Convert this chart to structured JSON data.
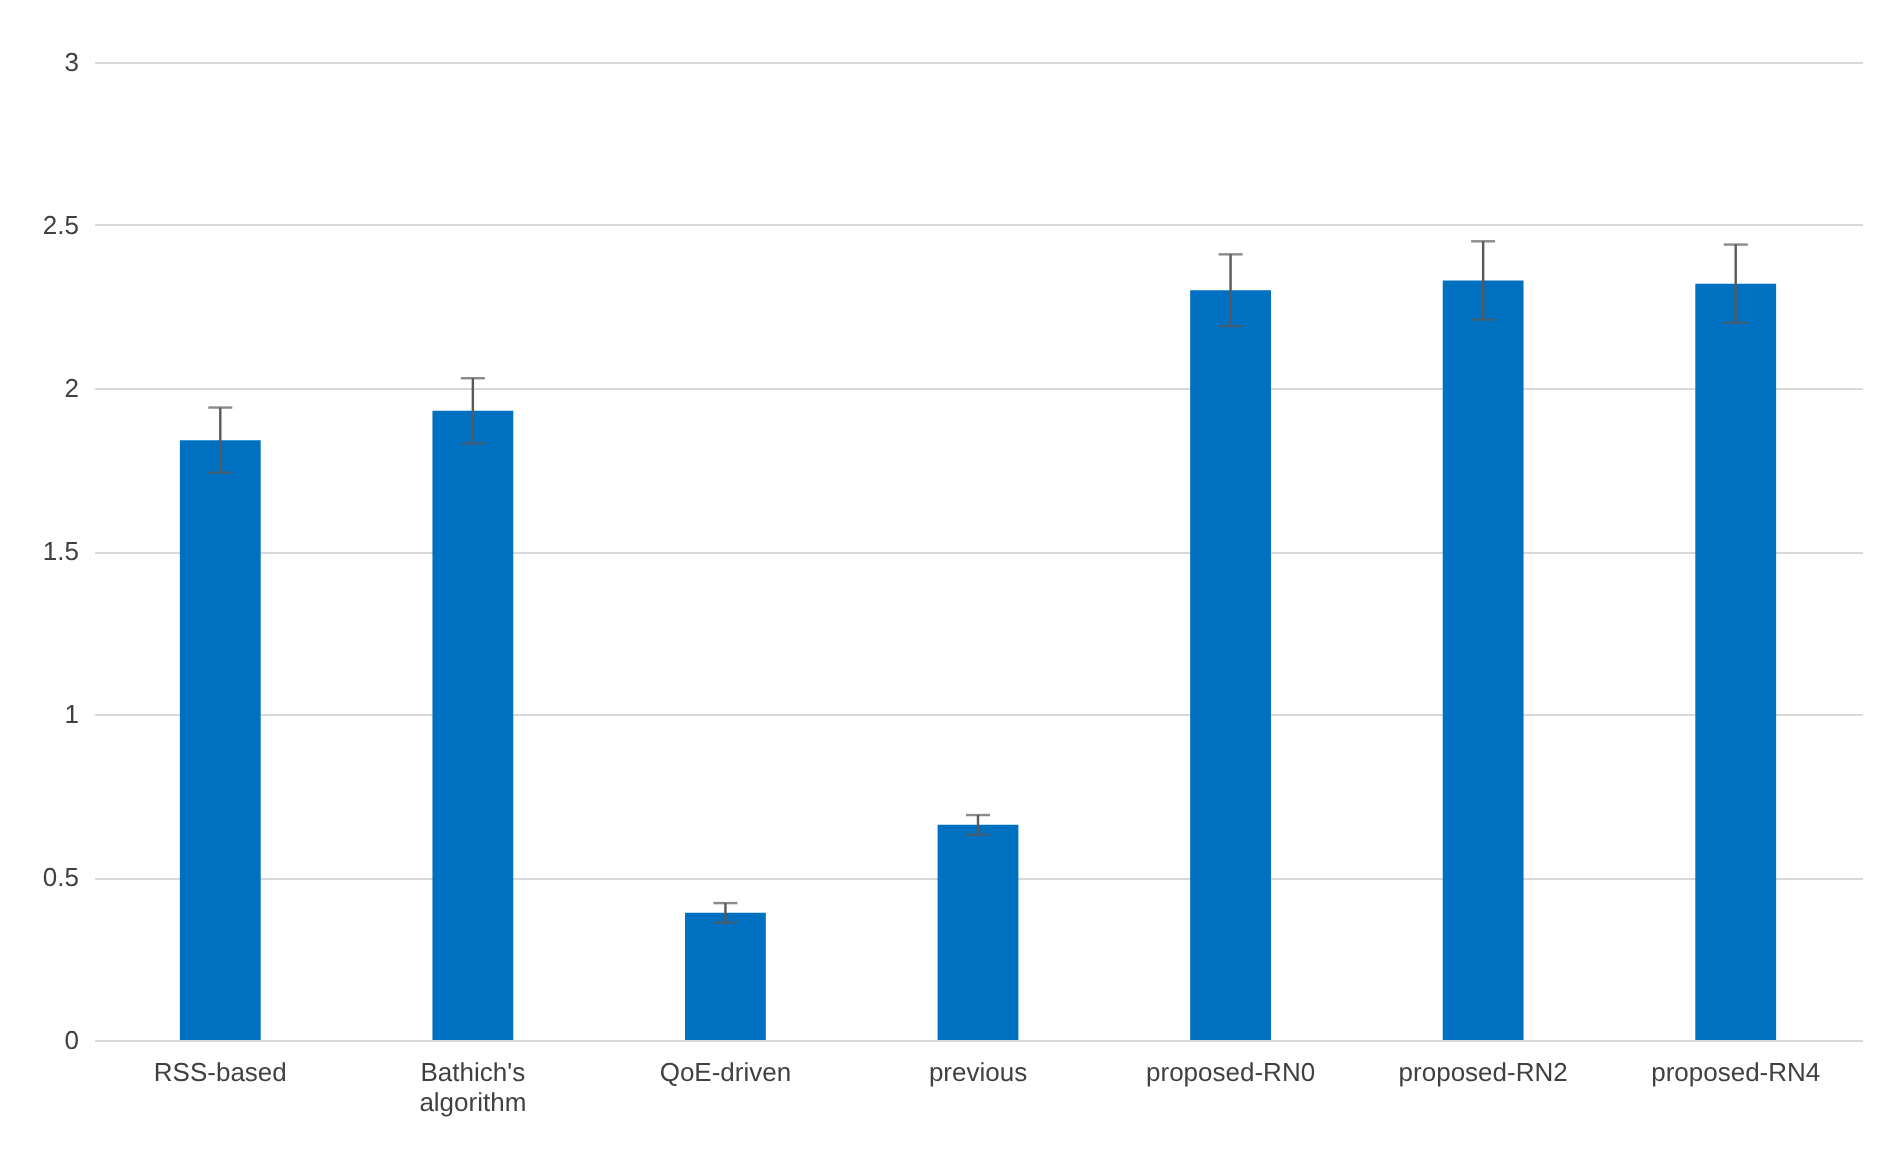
{
  "chart_data": {
    "type": "bar",
    "categories": [
      "RSS-based",
      "Bathich's algorithm",
      "QoE-driven",
      "previous",
      "proposed-RN0",
      "proposed-RN2",
      "proposed-RN4"
    ],
    "values": [
      1.84,
      1.93,
      0.39,
      0.66,
      2.3,
      2.33,
      2.32
    ],
    "errors": [
      0.1,
      0.1,
      0.03,
      0.03,
      0.11,
      0.12,
      0.12
    ],
    "color": "#0070c0",
    "ylim": [
      0,
      3
    ],
    "yticks": [
      0,
      0.5,
      1,
      1.5,
      2,
      2.5,
      3
    ],
    "grid": "y"
  }
}
